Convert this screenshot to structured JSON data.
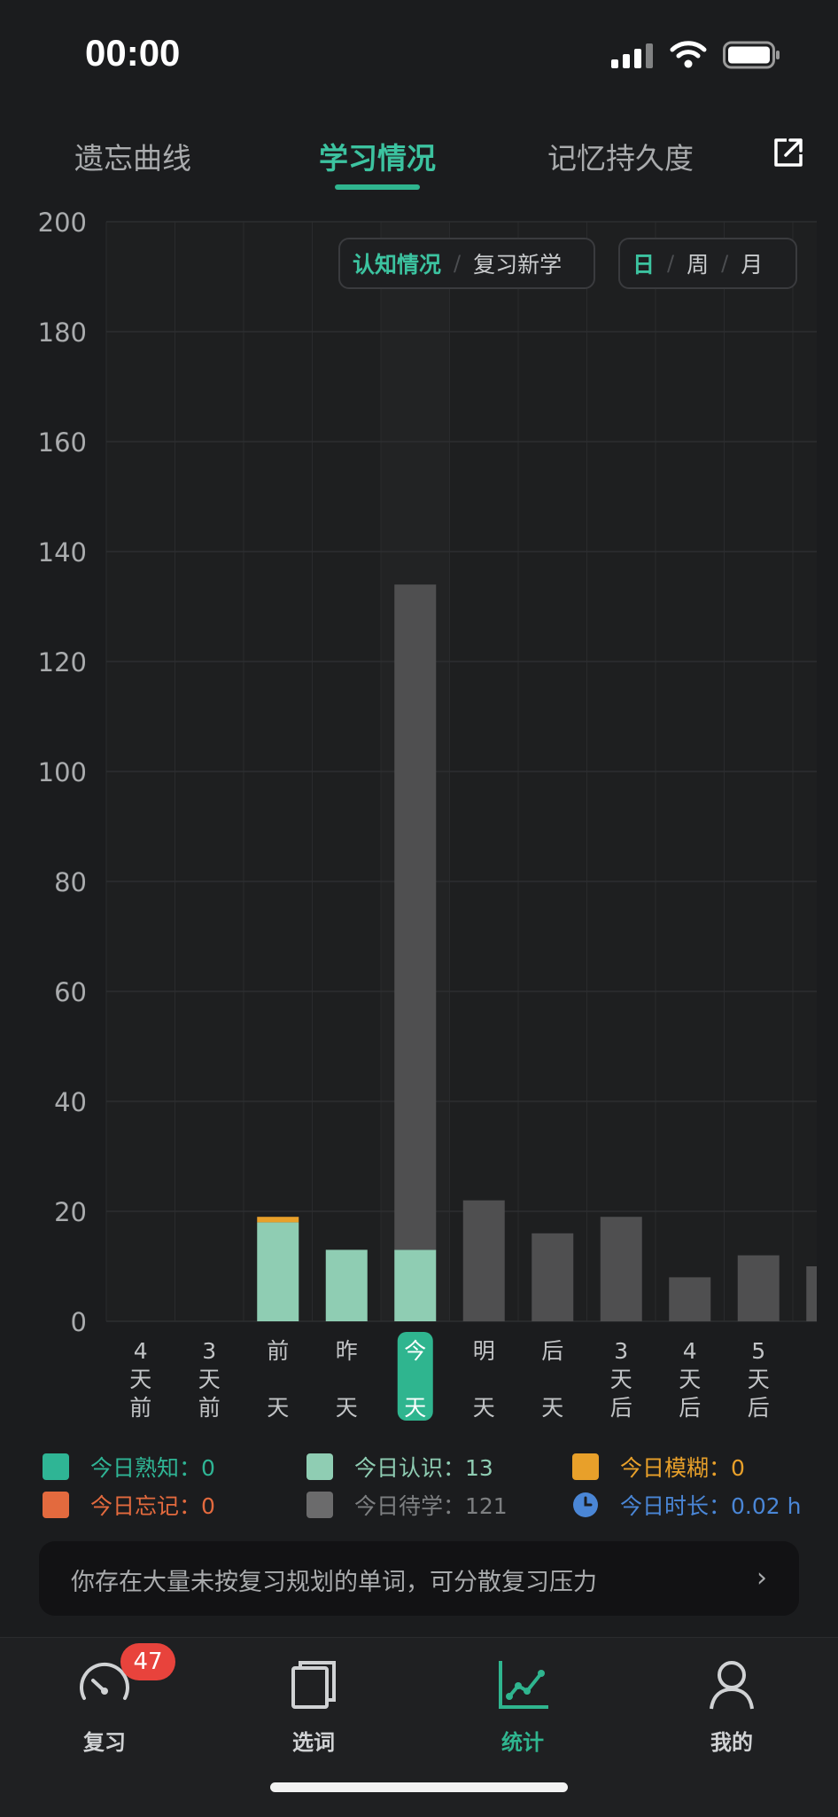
{
  "status": {
    "time": "00:00"
  },
  "tabs": [
    {
      "label": "遗忘曲线",
      "active": false
    },
    {
      "label": "学习情况",
      "active": true
    },
    {
      "label": "记忆持久度",
      "active": false
    }
  ],
  "toggles": {
    "mode": [
      {
        "label": "认知情况",
        "active": true
      },
      {
        "label": "复习新学",
        "active": false
      }
    ],
    "period": [
      {
        "label": "日",
        "active": true
      },
      {
        "label": "周",
        "active": false
      },
      {
        "label": "月",
        "active": false
      }
    ]
  },
  "colors": {
    "familiar": "#2fb595",
    "recognized": "#8fcdb3",
    "fuzzy": "#e8a02a",
    "forgotten": "#e36a3e",
    "pending": "#4f4f50",
    "duration": "#4a86d6",
    "accent": "#2fb58f"
  },
  "chart_data": {
    "type": "bar",
    "stacked": true,
    "ylim": [
      0,
      200
    ],
    "yticks": [
      0,
      20,
      40,
      60,
      80,
      100,
      120,
      140,
      160,
      180,
      200
    ],
    "grid": true,
    "categories": [
      "4天前",
      "3天前",
      "前天",
      "昨天",
      "今天",
      "明天",
      "后天",
      "3天后",
      "4天后",
      "5天后",
      ""
    ],
    "category_lines": [
      [
        "4",
        "天",
        "前"
      ],
      [
        "3",
        "天",
        "前"
      ],
      [
        "前",
        "",
        "天"
      ],
      [
        "昨",
        "",
        "天"
      ],
      [
        "今",
        "",
        "天"
      ],
      [
        "明",
        "",
        "天"
      ],
      [
        "后",
        "",
        "天"
      ],
      [
        "3",
        "天",
        "后"
      ],
      [
        "4",
        "天",
        "后"
      ],
      [
        "5",
        "天",
        "后"
      ],
      [
        "",
        "",
        ""
      ]
    ],
    "highlight_index": 4,
    "series": [
      {
        "name": "今日熟知",
        "color": "#2fb595",
        "values": [
          0,
          0,
          0,
          0,
          0,
          0,
          0,
          0,
          0,
          0,
          0
        ]
      },
      {
        "name": "今日认识",
        "color": "#8fcdb3",
        "values": [
          0,
          0,
          18,
          13,
          13,
          0,
          0,
          0,
          0,
          0,
          0
        ]
      },
      {
        "name": "今日模糊",
        "color": "#e8a02a",
        "values": [
          0,
          0,
          1,
          0,
          0,
          0,
          0,
          0,
          0,
          0,
          0
        ]
      },
      {
        "name": "今日忘记",
        "color": "#e36a3e",
        "values": [
          0,
          0,
          0,
          0,
          0,
          0,
          0,
          0,
          0,
          0,
          0
        ]
      },
      {
        "name": "今日待学",
        "color": "#4f4f50",
        "values": [
          0,
          0,
          0,
          0,
          121,
          22,
          16,
          19,
          8,
          12,
          10
        ]
      }
    ]
  },
  "legend": [
    {
      "label": "今日熟知：0",
      "color": "#2fb595"
    },
    {
      "label": "今日认识：13",
      "color": "#8fcdb3"
    },
    {
      "label": "今日模糊：0",
      "color": "#e8a02a"
    },
    {
      "label": "今日忘记：0",
      "color": "#e36a3e"
    },
    {
      "label": "今日待学：121",
      "color": "#6b6b6c"
    },
    {
      "label": "今日时长：0.02 h",
      "color": "#4a86d6",
      "icon": "clock-icon"
    }
  ],
  "tip": {
    "text": "你存在大量未按复习规划的单词，可分散复习压力",
    "arrow": "›"
  },
  "nav": [
    {
      "label": "复习",
      "icon": "speedometer-icon",
      "badge": "47",
      "active": false
    },
    {
      "label": "选词",
      "icon": "books-icon",
      "active": false
    },
    {
      "label": "统计",
      "icon": "line-chart-icon",
      "active": true
    },
    {
      "label": "我的",
      "icon": "person-icon",
      "active": false
    }
  ]
}
